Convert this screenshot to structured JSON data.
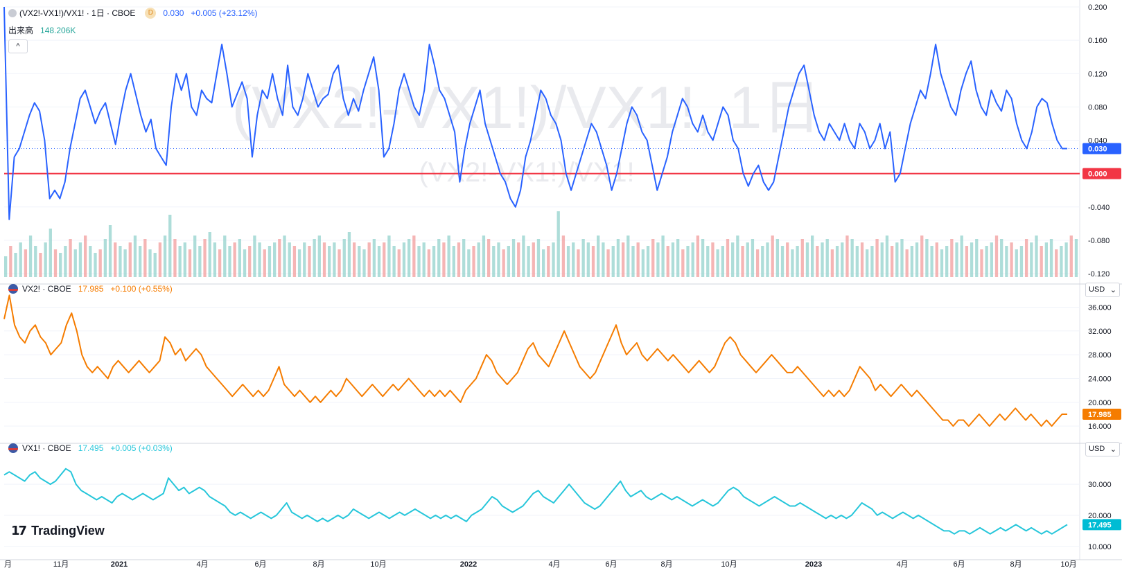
{
  "header": {
    "symbol": "(VX2!-VX1!)/VX1! · 1日 · CBOE",
    "interval_badge": "D",
    "last": "0.030",
    "change": "+0.005 (+23.12%)",
    "volume_label": "出来高",
    "volume_value": "148.206K",
    "collapse": "^"
  },
  "watermark": {
    "big": "(VX2!-VX1!)/VX1!, 1日",
    "small": "(VX2!-VX1!)/VX1!"
  },
  "pane2": {
    "symbol": "VX2! · CBOE",
    "last": "17.985",
    "change": "+0.100 (+0.55%)",
    "currency": "USD"
  },
  "pane3": {
    "symbol": "VX1! · CBOE",
    "last": "17.495",
    "change": "+0.005 (+0.03%)",
    "currency": "USD"
  },
  "brand": "TradingView",
  "colors": {
    "ratio": "#2962ff",
    "zero": "#f23645",
    "vx2": "#f57c00",
    "vx1": "#26c6da",
    "vol_up": "#9ad5cf",
    "vol_down": "#f2a3a3"
  },
  "chart_data": [
    {
      "type": "line",
      "title": "(VX2!-VX1!)/VX1! · 1日 · CBOE",
      "x_ticks": [
        "月",
        "11月",
        "2021",
        "4月",
        "6月",
        "8月",
        "10月",
        "2022",
        "4月",
        "6月",
        "8月",
        "10月",
        "2023",
        "4月",
        "6月",
        "8月",
        "10月"
      ],
      "y_ticks": [
        "0.200",
        "0.160",
        "0.120",
        "0.080",
        "0.040",
        "-0.040",
        "-0.080",
        "-0.120"
      ],
      "ylim": [
        -0.12,
        0.2
      ],
      "zero_line_label": "0.000",
      "last_label": "0.030",
      "series": [
        {
          "values": [
            0.2,
            -0.055,
            0.02,
            0.03,
            0.05,
            0.07,
            0.085,
            0.075,
            0.04,
            -0.03,
            -0.02,
            -0.03,
            -0.01,
            0.03,
            0.06,
            0.09,
            0.1,
            0.08,
            0.06,
            0.075,
            0.085,
            0.06,
            0.035,
            0.07,
            0.1,
            0.12,
            0.095,
            0.07,
            0.05,
            0.065,
            0.03,
            0.02,
            0.01,
            0.08,
            0.12,
            0.1,
            0.12,
            0.08,
            0.07,
            0.1,
            0.09,
            0.085,
            0.12,
            0.155,
            0.12,
            0.08,
            0.095,
            0.11,
            0.09,
            0.02,
            0.07,
            0.1,
            0.09,
            0.12,
            0.09,
            0.07,
            0.13,
            0.08,
            0.07,
            0.09,
            0.12,
            0.1,
            0.08,
            0.09,
            0.095,
            0.12,
            0.13,
            0.09,
            0.07,
            0.09,
            0.075,
            0.1,
            0.12,
            0.14,
            0.1,
            0.02,
            0.03,
            0.06,
            0.1,
            0.12,
            0.1,
            0.08,
            0.07,
            0.1,
            0.155,
            0.13,
            0.1,
            0.09,
            0.07,
            0.05,
            -0.01,
            0.03,
            0.06,
            0.08,
            0.1,
            0.06,
            0.04,
            0.02,
            0.0,
            -0.01,
            -0.03,
            -0.04,
            -0.02,
            0.02,
            0.04,
            0.07,
            0.1,
            0.09,
            0.07,
            0.06,
            0.04,
            0.0,
            -0.02,
            0.0,
            0.02,
            0.04,
            0.06,
            0.05,
            0.03,
            0.01,
            -0.02,
            0.0,
            0.03,
            0.06,
            0.08,
            0.07,
            0.05,
            0.04,
            0.01,
            -0.02,
            0.0,
            0.02,
            0.05,
            0.07,
            0.09,
            0.08,
            0.06,
            0.05,
            0.07,
            0.05,
            0.04,
            0.06,
            0.08,
            0.07,
            0.04,
            0.03,
            0.0,
            -0.015,
            0.0,
            0.01,
            -0.01,
            -0.02,
            -0.01,
            0.02,
            0.05,
            0.08,
            0.1,
            0.12,
            0.13,
            0.1,
            0.07,
            0.05,
            0.04,
            0.06,
            0.05,
            0.04,
            0.06,
            0.04,
            0.03,
            0.06,
            0.05,
            0.03,
            0.04,
            0.06,
            0.03,
            0.05,
            -0.01,
            0.0,
            0.03,
            0.06,
            0.08,
            0.1,
            0.09,
            0.12,
            0.155,
            0.12,
            0.1,
            0.08,
            0.07,
            0.1,
            0.12,
            0.135,
            0.1,
            0.08,
            0.07,
            0.1,
            0.085,
            0.075,
            0.1,
            0.09,
            0.06,
            0.04,
            0.03,
            0.05,
            0.08,
            0.09,
            0.085,
            0.06,
            0.04,
            0.03,
            0.03
          ]
        }
      ]
    },
    {
      "type": "bar",
      "title": "出来高",
      "values": [
        0.3,
        0.45,
        0.35,
        0.5,
        0.4,
        0.6,
        0.45,
        0.35,
        0.5,
        0.7,
        0.4,
        0.35,
        0.45,
        0.55,
        0.4,
        0.5,
        0.6,
        0.45,
        0.35,
        0.4,
        0.55,
        0.75,
        0.5,
        0.45,
        0.4,
        0.5,
        0.6,
        0.45,
        0.55,
        0.4,
        0.35,
        0.5,
        0.6,
        0.9,
        0.55,
        0.45,
        0.5,
        0.4,
        0.6,
        0.45,
        0.55,
        0.65,
        0.5,
        0.4,
        0.6,
        0.45,
        0.5,
        0.55,
        0.4,
        0.45,
        0.6,
        0.5,
        0.4,
        0.45,
        0.5,
        0.55,
        0.6,
        0.5,
        0.45,
        0.4,
        0.5,
        0.45,
        0.55,
        0.6,
        0.5,
        0.45,
        0.5,
        0.4,
        0.55,
        0.65,
        0.5,
        0.45,
        0.4,
        0.5,
        0.55,
        0.45,
        0.5,
        0.6,
        0.45,
        0.4,
        0.5,
        0.55,
        0.6,
        0.45,
        0.5,
        0.4,
        0.45,
        0.55,
        0.5,
        0.6,
        0.45,
        0.5,
        0.55,
        0.4,
        0.45,
        0.5,
        0.6,
        0.55,
        0.45,
        0.5,
        0.4,
        0.45,
        0.55,
        0.5,
        0.6,
        0.45,
        0.5,
        0.55,
        0.4,
        0.45,
        0.5,
        0.95,
        0.6,
        0.45,
        0.5,
        0.4,
        0.55,
        0.5,
        0.45,
        0.6,
        0.5,
        0.4,
        0.45,
        0.55,
        0.5,
        0.6,
        0.45,
        0.5,
        0.4,
        0.45,
        0.55,
        0.5,
        0.6,
        0.45,
        0.5,
        0.55,
        0.4,
        0.45,
        0.5,
        0.6,
        0.55,
        0.45,
        0.5,
        0.4,
        0.45,
        0.55,
        0.5,
        0.6,
        0.45,
        0.5,
        0.55,
        0.4,
        0.45,
        0.5,
        0.6,
        0.55,
        0.45,
        0.5,
        0.4,
        0.45,
        0.55,
        0.5,
        0.6,
        0.45,
        0.5,
        0.55,
        0.4,
        0.45,
        0.5,
        0.6,
        0.55,
        0.45,
        0.5,
        0.4,
        0.45,
        0.55,
        0.5,
        0.6,
        0.45,
        0.5,
        0.55,
        0.4,
        0.45,
        0.5,
        0.6,
        0.55,
        0.45,
        0.5,
        0.4,
        0.45,
        0.55,
        0.5,
        0.6,
        0.45,
        0.5,
        0.55,
        0.4,
        0.45,
        0.5,
        0.6,
        0.55,
        0.45,
        0.5,
        0.4,
        0.45,
        0.55,
        0.5,
        0.6,
        0.45,
        0.5,
        0.55,
        0.4,
        0.45,
        0.5,
        0.6,
        0.55
      ]
    },
    {
      "type": "line",
      "title": "VX2! · CBOE",
      "y_ticks": [
        "36.000",
        "32.000",
        "28.000",
        "24.000",
        "20.000",
        "16.000"
      ],
      "ylim": [
        14.5,
        38.5
      ],
      "last_label": "17.985",
      "series": [
        {
          "values": [
            34,
            38,
            33,
            31,
            30,
            32,
            33,
            31,
            30,
            28,
            29,
            30,
            33,
            35,
            32,
            28,
            26,
            25,
            26,
            25,
            24,
            26,
            27,
            26,
            25,
            26,
            27,
            26,
            25,
            26,
            27,
            31,
            30,
            28,
            29,
            27,
            28,
            29,
            28,
            26,
            25,
            24,
            23,
            22,
            21,
            22,
            23,
            22,
            21,
            22,
            21,
            22,
            24,
            26,
            23,
            22,
            21,
            22,
            21,
            20,
            21,
            20,
            21,
            22,
            21,
            22,
            24,
            23,
            22,
            21,
            22,
            23,
            22,
            21,
            22,
            23,
            22,
            23,
            24,
            23,
            22,
            21,
            22,
            21,
            22,
            21,
            22,
            21,
            20,
            22,
            23,
            24,
            26,
            28,
            27,
            25,
            24,
            23,
            24,
            25,
            27,
            29,
            30,
            28,
            27,
            26,
            28,
            30,
            32,
            30,
            28,
            26,
            25,
            24,
            25,
            27,
            29,
            31,
            33,
            30,
            28,
            29,
            30,
            28,
            27,
            28,
            29,
            28,
            27,
            28,
            27,
            26,
            25,
            26,
            27,
            26,
            25,
            26,
            28,
            30,
            31,
            30,
            28,
            27,
            26,
            25,
            26,
            27,
            28,
            27,
            26,
            25,
            25,
            26,
            25,
            24,
            23,
            22,
            21,
            22,
            21,
            22,
            21,
            22,
            24,
            26,
            25,
            24,
            22,
            23,
            22,
            21,
            22,
            23,
            22,
            21,
            22,
            21,
            20,
            19,
            18,
            17,
            17,
            16,
            17,
            17,
            16,
            17,
            18,
            17,
            16,
            17,
            18,
            17,
            18,
            19,
            18,
            17,
            18,
            17,
            16,
            17,
            16,
            17,
            18,
            18
          ]
        }
      ]
    },
    {
      "type": "line",
      "title": "VX1! · CBOE",
      "y_ticks": [
        "30.000",
        "20.000",
        "10.000"
      ],
      "ylim": [
        7.5,
        40.5
      ],
      "last_label": "17.495",
      "series": [
        {
          "values": [
            33,
            34,
            33,
            32,
            31,
            33,
            34,
            32,
            31,
            30,
            31,
            33,
            35,
            34,
            30,
            28,
            27,
            26,
            25,
            26,
            25,
            24,
            26,
            27,
            26,
            25,
            26,
            27,
            26,
            25,
            26,
            27,
            32,
            30,
            28,
            29,
            27,
            28,
            29,
            28,
            26,
            25,
            24,
            23,
            21,
            20,
            21,
            20,
            19,
            20,
            21,
            20,
            19,
            20,
            22,
            24,
            21,
            20,
            19,
            20,
            19,
            18,
            19,
            18,
            19,
            20,
            19,
            20,
            22,
            21,
            20,
            19,
            20,
            21,
            20,
            19,
            20,
            21,
            20,
            21,
            22,
            21,
            20,
            19,
            20,
            19,
            20,
            19,
            20,
            19,
            18,
            20,
            21,
            22,
            24,
            26,
            25,
            23,
            22,
            21,
            22,
            23,
            25,
            27,
            28,
            26,
            25,
            24,
            26,
            28,
            30,
            28,
            26,
            24,
            23,
            22,
            23,
            25,
            27,
            29,
            31,
            28,
            26,
            27,
            28,
            26,
            25,
            26,
            27,
            26,
            25,
            26,
            25,
            24,
            23,
            24,
            25,
            24,
            23,
            24,
            26,
            28,
            29,
            28,
            26,
            25,
            24,
            23,
            24,
            25,
            26,
            25,
            24,
            23,
            23,
            24,
            23,
            22,
            21,
            20,
            19,
            20,
            19,
            20,
            19,
            20,
            22,
            24,
            23,
            22,
            20,
            21,
            20,
            19,
            20,
            21,
            20,
            19,
            20,
            19,
            18,
            17,
            16,
            15,
            15,
            14,
            15,
            15,
            14,
            15,
            16,
            15,
            14,
            15,
            16,
            15,
            16,
            17,
            16,
            15,
            16,
            15,
            14,
            15,
            14,
            15,
            16,
            17
          ]
        }
      ]
    }
  ]
}
